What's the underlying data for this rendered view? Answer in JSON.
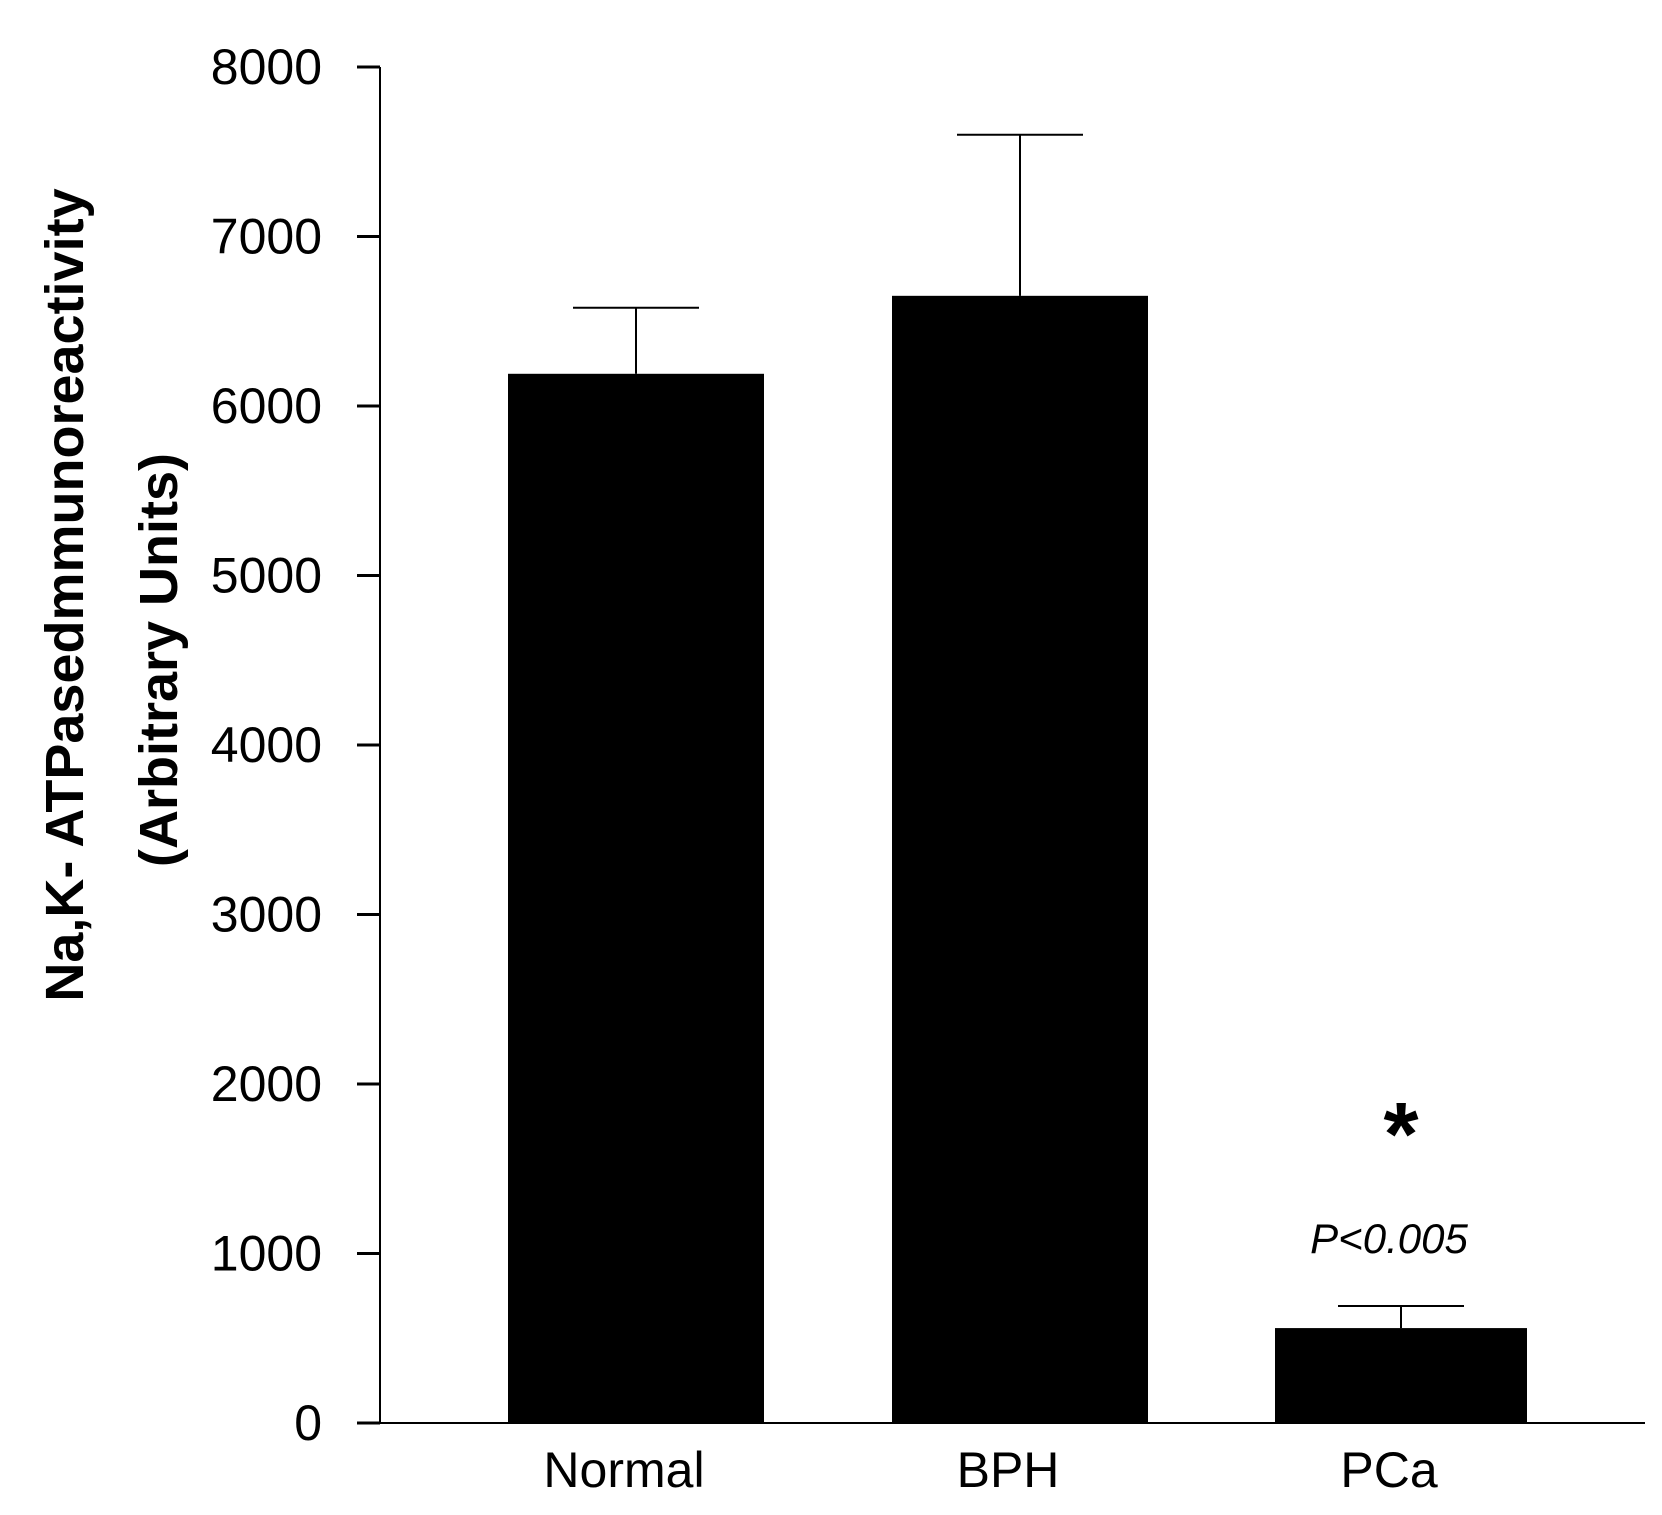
{
  "chart_data": {
    "type": "bar",
    "categories": [
      "Normal",
      "BPH",
      "PCa"
    ],
    "series": [
      {
        "values": [
          6190,
          6650,
          560
        ],
        "error_upper": [
          6580,
          7600,
          690
        ]
      }
    ],
    "ylabel_lines": [
      "Na,K- ATPasedmmunoreactivity",
      "(Arbitrary Units)"
    ],
    "xlabel": "",
    "ylim": [
      0,
      8000
    ],
    "yticks": [
      0,
      1000,
      2000,
      3000,
      4000,
      5000,
      6000,
      7000,
      8000
    ],
    "grid": false,
    "bar_color": "#000000",
    "annotations": [
      {
        "category": "PCa",
        "text": "P<0.005",
        "style": "italic"
      },
      {
        "category": "PCa",
        "text": "*",
        "style": "bold"
      }
    ]
  }
}
